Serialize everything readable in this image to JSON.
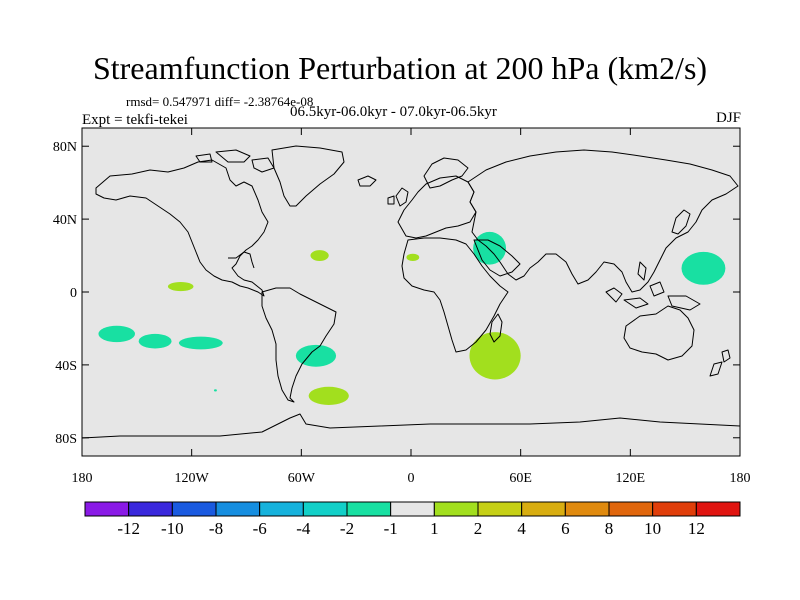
{
  "figure": {
    "title": "Streamfunction Perturbation at 200 hPa (km2/s)",
    "stats": "rmsd= 0.547971 diff= -2.38764e-08",
    "experiment": "Expt = tekfi-tekei",
    "period": "06.5kyr-06.0kyr - 07.0kyr-06.5kyr",
    "season": "DJF"
  },
  "map": {
    "projection": "cylindrical-equidistant",
    "lon_range": [
      -180,
      180
    ],
    "lat_range": [
      -90,
      90
    ],
    "background_color": "#e6e6e6",
    "coast_color": "#000000",
    "lat_ticks": [
      {
        "value": 80,
        "label": "80N"
      },
      {
        "value": 40,
        "label": "40N"
      },
      {
        "value": 0,
        "label": "0"
      },
      {
        "value": -40,
        "label": "40S"
      },
      {
        "value": -80,
        "label": "80S"
      }
    ],
    "lon_ticks": [
      {
        "value": -180,
        "label": "180"
      },
      {
        "value": -120,
        "label": "120W"
      },
      {
        "value": -60,
        "label": "60W"
      },
      {
        "value": 0,
        "label": "0"
      },
      {
        "value": 60,
        "label": "60E"
      },
      {
        "value": 120,
        "label": "120E"
      },
      {
        "value": 180,
        "label": "180"
      }
    ]
  },
  "chart_data": {
    "type": "heatmap",
    "title": "Streamfunction Perturbation at 200 hPa (km2/s)",
    "variable": "streamfunction perturbation",
    "level": "200 hPa",
    "units": "km2/s",
    "contour_levels": [
      -12,
      -10,
      -8,
      -6,
      -4,
      -2,
      -1,
      1,
      2,
      4,
      6,
      8,
      10,
      12
    ],
    "colorbar_colors": [
      "#8a1ae6",
      "#3a28dc",
      "#1a5ae0",
      "#168ee0",
      "#16b2dc",
      "#12d0c8",
      "#18e0a2",
      "#e6e6e6",
      "#a2df1e",
      "#c6d016",
      "#d8ad10",
      "#e08a0e",
      "#e0660c",
      "#e03e0a",
      "#e01410"
    ],
    "anomaly_regions": [
      {
        "class": "-2 to -1",
        "color": "#18e0a2",
        "lon_center": -161,
        "lat_center": -23,
        "lon_half_width": 10,
        "lat_half_height": 4.5
      },
      {
        "class": "-2 to -1",
        "color": "#18e0a2",
        "lon_center": -140,
        "lat_center": -27,
        "lon_half_width": 9,
        "lat_half_height": 4
      },
      {
        "class": "-2 to -1",
        "color": "#18e0a2",
        "lon_center": -115,
        "lat_center": -28,
        "lon_half_width": 12,
        "lat_half_height": 3.5
      },
      {
        "class": "-2 to -1",
        "color": "#18e0a2",
        "lon_center": -52,
        "lat_center": -35,
        "lon_half_width": 11,
        "lat_half_height": 6
      },
      {
        "class": "-2 to -1",
        "color": "#18e0a2",
        "lon_center": 43,
        "lat_center": 24,
        "lon_half_width": 9,
        "lat_half_height": 9
      },
      {
        "class": "-2 to -1",
        "color": "#18e0a2",
        "lon_center": 160,
        "lat_center": 13,
        "lon_half_width": 12,
        "lat_half_height": 9
      },
      {
        "class": "-2 to -1",
        "color": "#18e0a2",
        "lon_center": -107,
        "lat_center": -54,
        "lon_half_width": 0.8,
        "lat_half_height": 0.6
      },
      {
        "class": "1 to 2",
        "color": "#a2df1e",
        "lon_center": -126,
        "lat_center": 3,
        "lon_half_width": 7,
        "lat_half_height": 2.5
      },
      {
        "class": "1 to 2",
        "color": "#a2df1e",
        "lon_center": -50,
        "lat_center": 20,
        "lon_half_width": 5,
        "lat_half_height": 3
      },
      {
        "class": "1 to 2",
        "color": "#a2df1e",
        "lon_center": 1,
        "lat_center": 19,
        "lon_half_width": 3.5,
        "lat_half_height": 2
      },
      {
        "class": "1 to 2",
        "color": "#a2df1e",
        "lon_center": -45,
        "lat_center": -57,
        "lon_half_width": 11,
        "lat_half_height": 5
      },
      {
        "class": "1 to 2",
        "color": "#a2df1e",
        "lon_center": 46,
        "lat_center": -35,
        "lon_half_width": 14,
        "lat_half_height": 13
      }
    ]
  },
  "colorbar": {
    "labels": [
      "-12",
      "-10",
      "-8",
      "-6",
      "-4",
      "-2",
      "-1",
      "1",
      "2",
      "4",
      "6",
      "8",
      "10",
      "12"
    ]
  }
}
